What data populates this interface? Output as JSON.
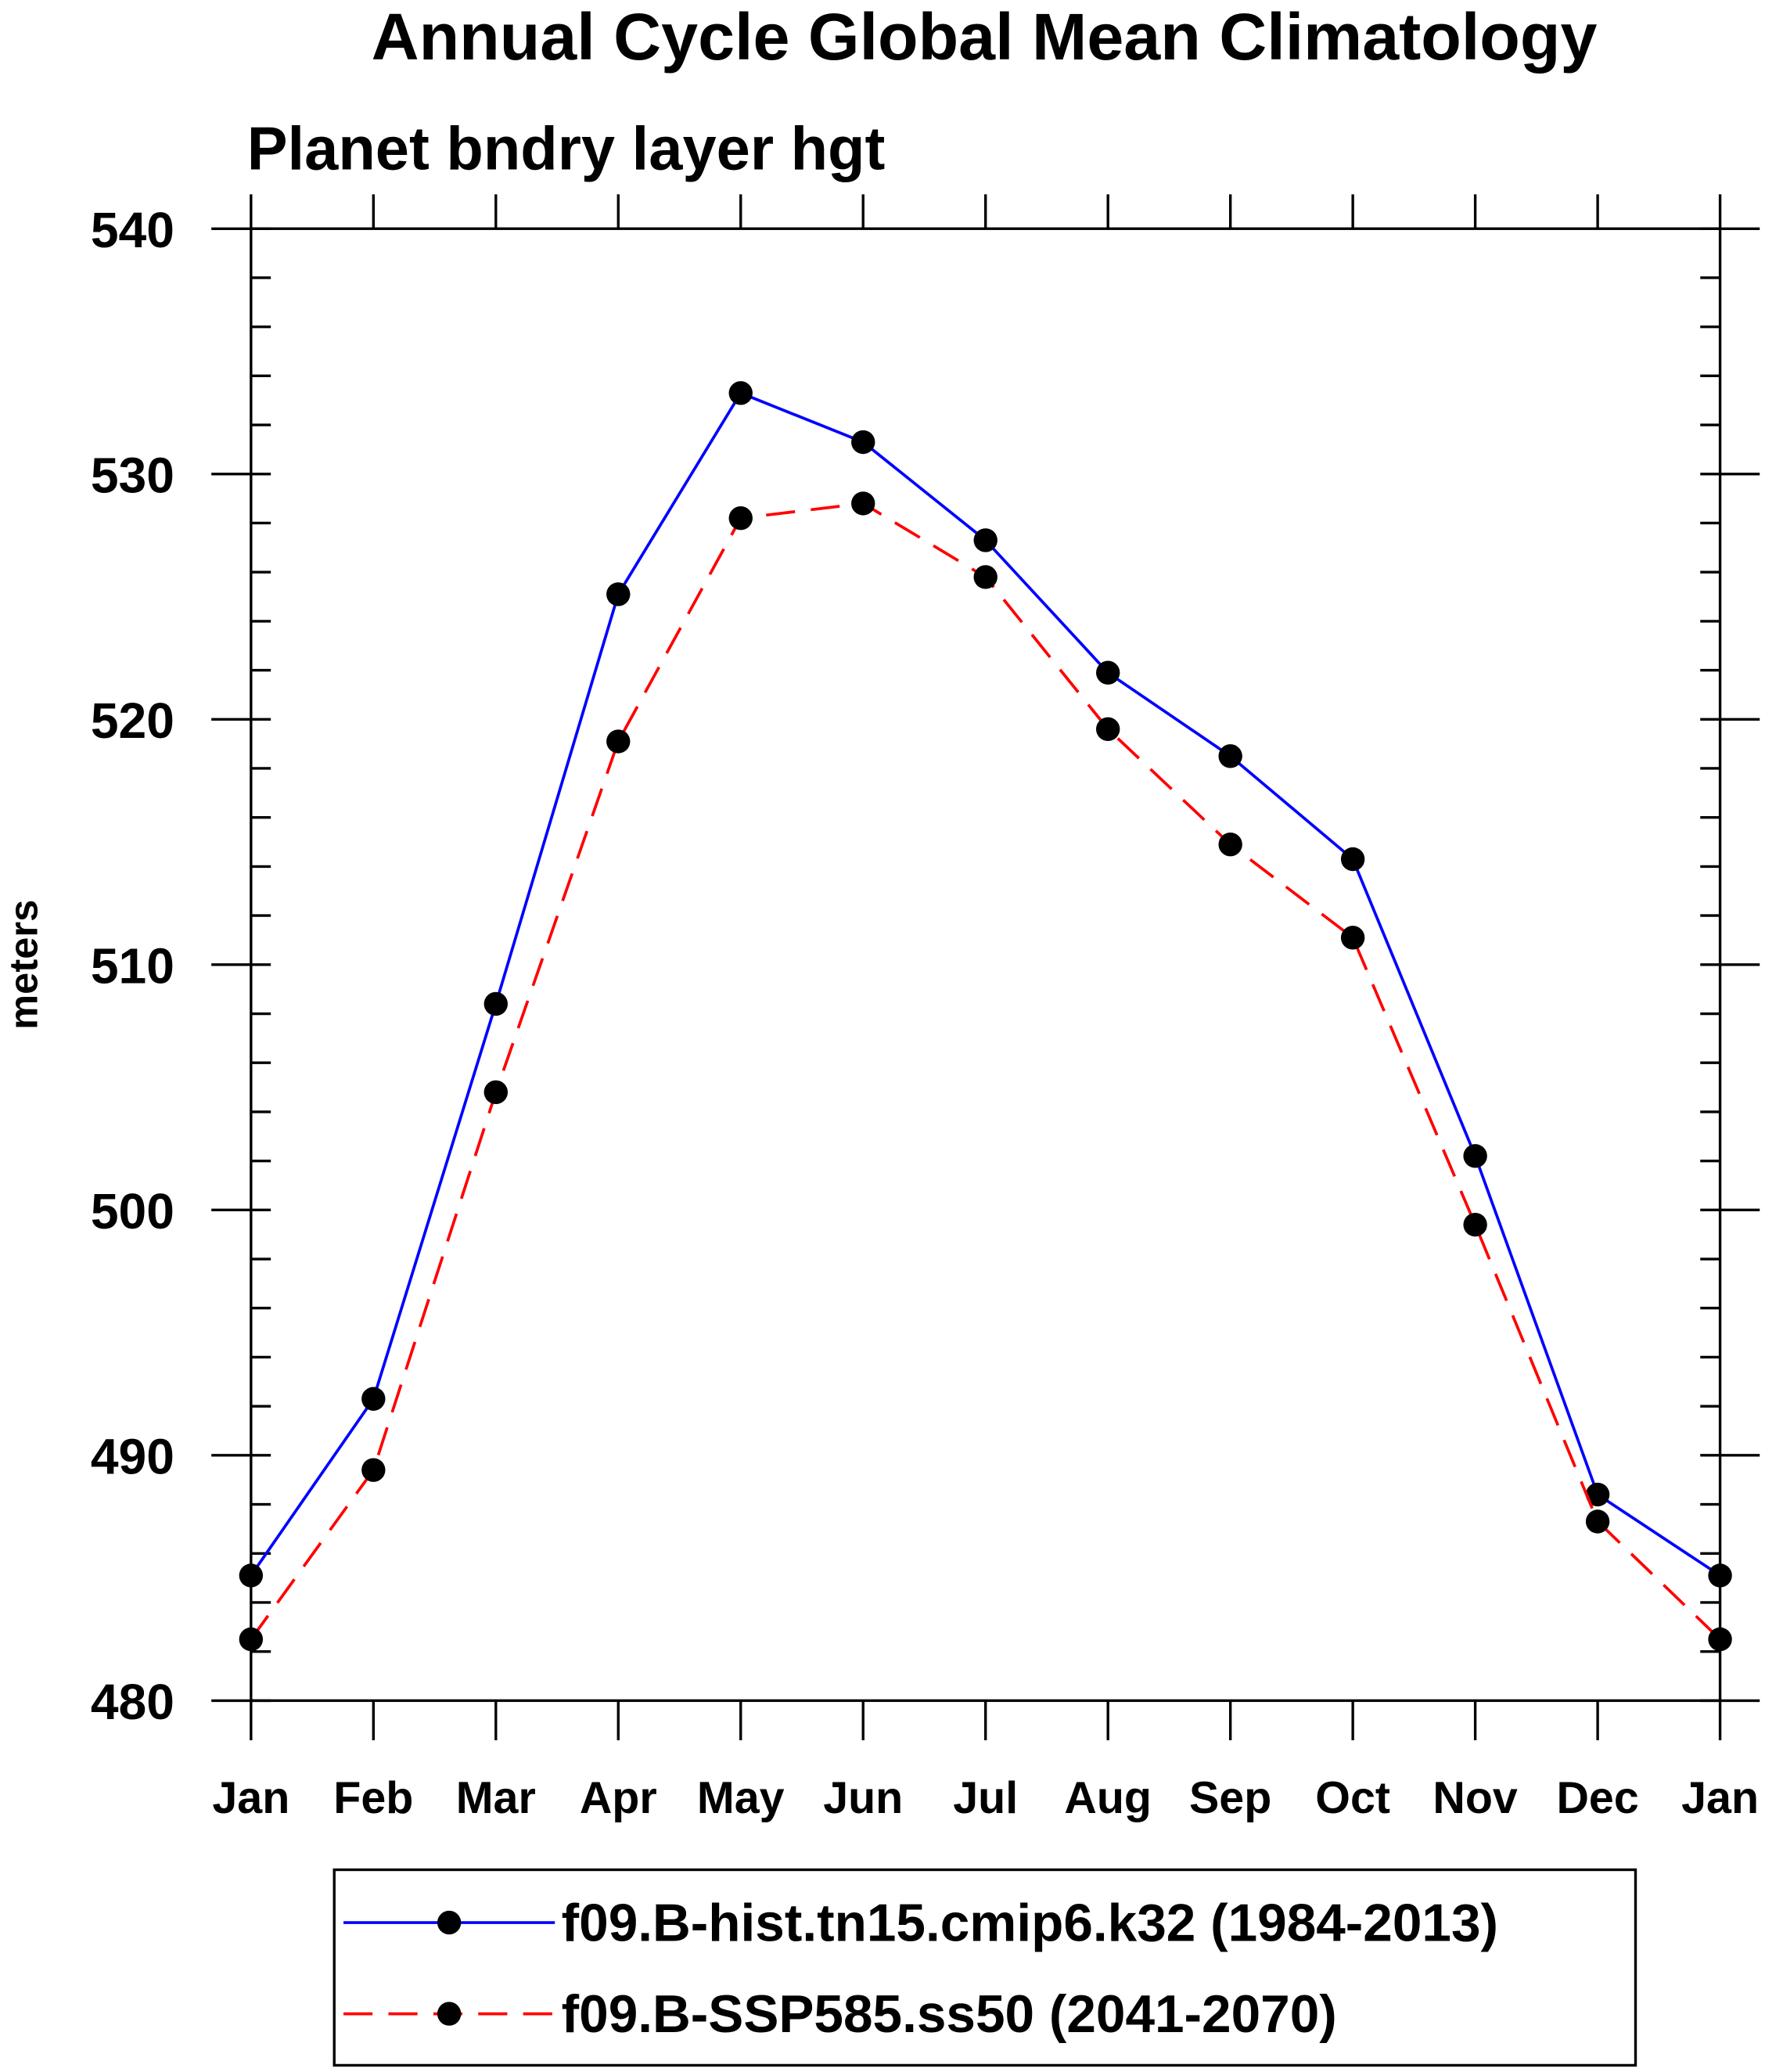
{
  "chart_data": {
    "type": "line",
    "title": "Annual Cycle Global Mean Climatology",
    "subtitle": "Planet bndry layer hgt",
    "xlabel": "",
    "ylabel": "meters",
    "categories": [
      "Jan",
      "Feb",
      "Mar",
      "Apr",
      "May",
      "Jun",
      "Jul",
      "Aug",
      "Sep",
      "Oct",
      "Nov",
      "Dec",
      "Jan"
    ],
    "ylim": [
      480,
      540
    ],
    "yticks": [
      480,
      490,
      500,
      510,
      520,
      530,
      540
    ],
    "yminor_step": 2,
    "grid": false,
    "legend_placement": "bottom",
    "series": [
      {
        "name": "f09.B-hist.tn15.cmip6.k32 (1984-2013)",
        "color": "#0000ff",
        "dash": "solid",
        "values": [
          485.1,
          492.3,
          508.4,
          525.1,
          533.3,
          531.3,
          527.3,
          521.9,
          518.5,
          514.3,
          502.2,
          488.4,
          485.1
        ]
      },
      {
        "name": "f09.B-SSP585.ss50 (2041-2070)",
        "color": "#ff0000",
        "dash": "dashed",
        "values": [
          482.5,
          489.4,
          504.8,
          519.1,
          528.2,
          528.8,
          525.8,
          519.6,
          514.9,
          511.1,
          499.4,
          487.3,
          482.5
        ]
      }
    ]
  }
}
